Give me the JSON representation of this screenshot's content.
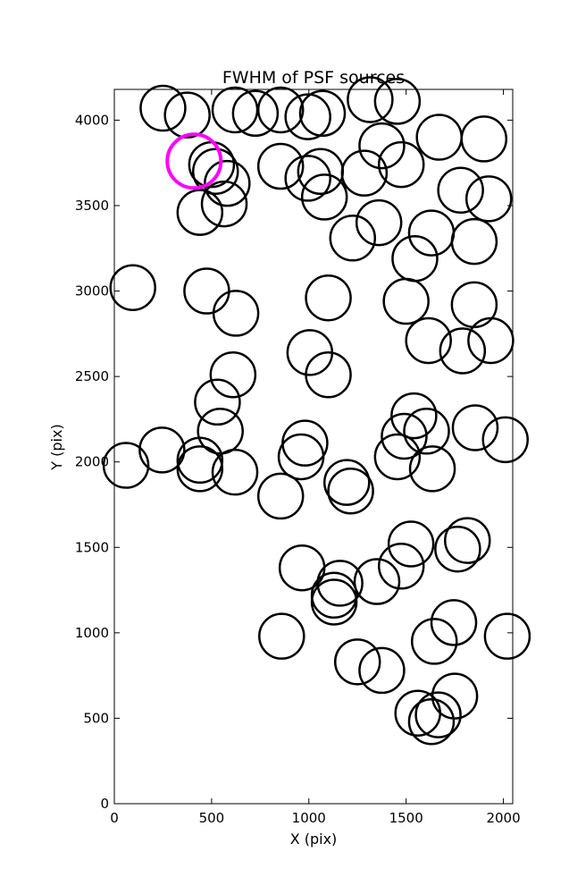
{
  "chart_data": {
    "type": "scatter",
    "title": "FWHM of PSF sources",
    "xlabel": "X (pix)",
    "ylabel": "Y (pix)",
    "xlim": [
      0,
      2048
    ],
    "ylim": [
      0,
      4180
    ],
    "xticks": [
      0,
      500,
      1000,
      1500,
      2000
    ],
    "yticks": [
      0,
      500,
      1000,
      1500,
      2000,
      2500,
      3000,
      3500,
      4000
    ],
    "marker": "open-circle",
    "grid": false,
    "colors": {
      "default": "#000000",
      "highlight": "#ff00ff"
    },
    "highlight": {
      "x": 410,
      "y": 3760
    },
    "points": [
      {
        "x": 250,
        "y": 4070
      },
      {
        "x": 375,
        "y": 4030
      },
      {
        "x": 620,
        "y": 4060
      },
      {
        "x": 725,
        "y": 4040
      },
      {
        "x": 855,
        "y": 4060
      },
      {
        "x": 995,
        "y": 4020
      },
      {
        "x": 1070,
        "y": 4040
      },
      {
        "x": 1315,
        "y": 4120
      },
      {
        "x": 1455,
        "y": 4110
      },
      {
        "x": 1670,
        "y": 3900
      },
      {
        "x": 1900,
        "y": 3890
      },
      {
        "x": 1375,
        "y": 3850
      },
      {
        "x": 1475,
        "y": 3740
      },
      {
        "x": 1285,
        "y": 3690
      },
      {
        "x": 855,
        "y": 3730
      },
      {
        "x": 1060,
        "y": 3700
      },
      {
        "x": 995,
        "y": 3660
      },
      {
        "x": 1080,
        "y": 3550
      },
      {
        "x": 500,
        "y": 3740
      },
      {
        "x": 520,
        "y": 3700
      },
      {
        "x": 580,
        "y": 3630
      },
      {
        "x": 565,
        "y": 3510
      },
      {
        "x": 440,
        "y": 3460
      },
      {
        "x": 1780,
        "y": 3590
      },
      {
        "x": 1925,
        "y": 3540
      },
      {
        "x": 1360,
        "y": 3400
      },
      {
        "x": 1225,
        "y": 3310
      },
      {
        "x": 1630,
        "y": 3340
      },
      {
        "x": 1850,
        "y": 3290
      },
      {
        "x": 1545,
        "y": 3190
      },
      {
        "x": 95,
        "y": 3020
      },
      {
        "x": 475,
        "y": 3000
      },
      {
        "x": 625,
        "y": 2870
      },
      {
        "x": 1100,
        "y": 2960
      },
      {
        "x": 1500,
        "y": 2940
      },
      {
        "x": 1850,
        "y": 2920
      },
      {
        "x": 1615,
        "y": 2710
      },
      {
        "x": 1790,
        "y": 2650
      },
      {
        "x": 1935,
        "y": 2710
      },
      {
        "x": 1005,
        "y": 2640
      },
      {
        "x": 1100,
        "y": 2510
      },
      {
        "x": 610,
        "y": 2510
      },
      {
        "x": 530,
        "y": 2350
      },
      {
        "x": 545,
        "y": 2180
      },
      {
        "x": 1540,
        "y": 2270
      },
      {
        "x": 1490,
        "y": 2150
      },
      {
        "x": 1605,
        "y": 2180
      },
      {
        "x": 1855,
        "y": 2200
      },
      {
        "x": 2010,
        "y": 2130
      },
      {
        "x": 245,
        "y": 2070
      },
      {
        "x": 60,
        "y": 1980
      },
      {
        "x": 440,
        "y": 2010
      },
      {
        "x": 440,
        "y": 1960
      },
      {
        "x": 620,
        "y": 1940
      },
      {
        "x": 980,
        "y": 2110
      },
      {
        "x": 960,
        "y": 2030
      },
      {
        "x": 1195,
        "y": 1880
      },
      {
        "x": 1215,
        "y": 1830
      },
      {
        "x": 1455,
        "y": 2030
      },
      {
        "x": 1635,
        "y": 1960
      },
      {
        "x": 855,
        "y": 1800
      },
      {
        "x": 1525,
        "y": 1520
      },
      {
        "x": 1765,
        "y": 1490
      },
      {
        "x": 1815,
        "y": 1540
      },
      {
        "x": 1475,
        "y": 1390
      },
      {
        "x": 965,
        "y": 1380
      },
      {
        "x": 1160,
        "y": 1290
      },
      {
        "x": 1350,
        "y": 1300
      },
      {
        "x": 1130,
        "y": 1220
      },
      {
        "x": 1130,
        "y": 1180
      },
      {
        "x": 860,
        "y": 980
      },
      {
        "x": 1745,
        "y": 1060
      },
      {
        "x": 1645,
        "y": 950
      },
      {
        "x": 2020,
        "y": 980
      },
      {
        "x": 1250,
        "y": 830
      },
      {
        "x": 1375,
        "y": 780
      },
      {
        "x": 1750,
        "y": 630
      },
      {
        "x": 1560,
        "y": 530
      },
      {
        "x": 1630,
        "y": 480
      },
      {
        "x": 1665,
        "y": 520
      }
    ]
  }
}
